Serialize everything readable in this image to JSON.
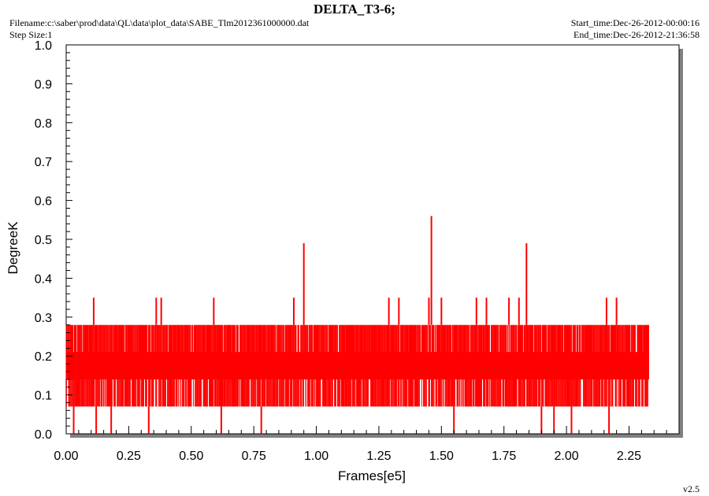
{
  "header": {
    "title": "DELTA_T3-6;",
    "filename": "Filename:c:\\saber\\prod\\data\\QL\\data\\plot_data\\SABE_Tlm2012361000000.dat",
    "step_size": "Step Size:1",
    "start_time": "Start_time:Dec-26-2012-00:00:16",
    "end_time": "End_time:Dec-26-2012-21:36:58"
  },
  "footer": {
    "version": "v2.5"
  },
  "chart_data": {
    "type": "line",
    "title": "DELTA_T3-6;",
    "xlabel": "Frames[e5]",
    "ylabel": "DegreeK",
    "xlim": [
      0.0,
      2.45
    ],
    "ylim": [
      0.0,
      1.0
    ],
    "x_ticks": [
      "0.00",
      "0.25",
      "0.50",
      "0.75",
      "1.00",
      "1.25",
      "1.50",
      "1.75",
      "2.00",
      "2.25"
    ],
    "y_ticks": [
      "0.0",
      "0.1",
      "0.2",
      "0.3",
      "0.4",
      "0.5",
      "0.6",
      "0.7",
      "0.8",
      "0.9",
      "1.0"
    ],
    "series_color": "#ff0000",
    "series": [
      {
        "x_range": [
          0.0,
          2.33
        ],
        "typical_band": [
          0.07,
          0.28
        ],
        "levels": [
          0.0,
          0.07,
          0.14,
          0.21,
          0.28,
          0.35
        ],
        "spikes": [
          {
            "x": 0.11,
            "y": 0.35
          },
          {
            "x": 0.36,
            "y": 0.35
          },
          {
            "x": 0.38,
            "y": 0.35
          },
          {
            "x": 0.59,
            "y": 0.35
          },
          {
            "x": 0.91,
            "y": 0.35
          },
          {
            "x": 0.95,
            "y": 0.49
          },
          {
            "x": 1.29,
            "y": 0.35
          },
          {
            "x": 1.33,
            "y": 0.35
          },
          {
            "x": 1.45,
            "y": 0.35
          },
          {
            "x": 1.46,
            "y": 0.56
          },
          {
            "x": 1.5,
            "y": 0.35
          },
          {
            "x": 1.64,
            "y": 0.35
          },
          {
            "x": 1.68,
            "y": 0.35
          },
          {
            "x": 1.77,
            "y": 0.35
          },
          {
            "x": 1.81,
            "y": 0.35
          },
          {
            "x": 1.84,
            "y": 0.49
          },
          {
            "x": 2.16,
            "y": 0.35
          },
          {
            "x": 2.2,
            "y": 0.35
          }
        ],
        "dips": [
          {
            "x": 0.03,
            "y": 0.0
          },
          {
            "x": 0.12,
            "y": 0.0
          },
          {
            "x": 0.18,
            "y": 0.0
          },
          {
            "x": 0.33,
            "y": 0.0
          },
          {
            "x": 0.62,
            "y": 0.0
          },
          {
            "x": 0.78,
            "y": 0.0
          },
          {
            "x": 1.55,
            "y": 0.0
          },
          {
            "x": 1.9,
            "y": 0.0
          },
          {
            "x": 1.95,
            "y": 0.0
          },
          {
            "x": 2.02,
            "y": 0.0
          },
          {
            "x": 2.17,
            "y": 0.0
          }
        ]
      }
    ]
  }
}
